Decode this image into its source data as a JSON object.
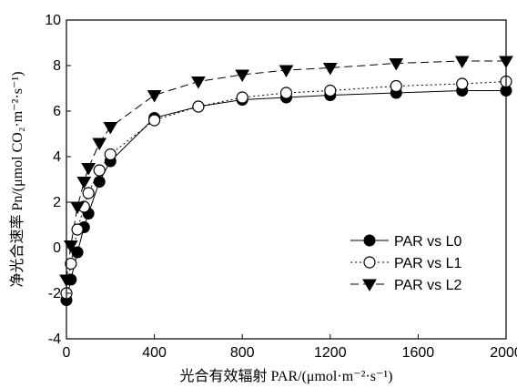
{
  "chart_data": {
    "type": "scatter",
    "xlabel": "光合有效辐射 PAR/(μmol·m⁻²·s⁻¹)",
    "ylabel": "净光合速率 Pn/(μmol CO₂·m⁻²·s⁻¹)",
    "xlim": [
      0,
      2000
    ],
    "ylim": [
      -4,
      10
    ],
    "xticks": [
      "0",
      "400",
      "800",
      "1200",
      "1600",
      "2000"
    ],
    "yticks": [
      "-4",
      "-2",
      "0",
      "2",
      "4",
      "6",
      "8",
      "10"
    ],
    "grid": false,
    "legend_position": "right-middle",
    "series": [
      {
        "name": "PAR vs L0",
        "marker": "filled-circle",
        "line": "solid",
        "x": [
          0,
          20,
          50,
          80,
          100,
          150,
          200,
          400,
          600,
          800,
          1000,
          1200,
          1500,
          1800,
          2000
        ],
        "y": [
          -2.3,
          -1.4,
          -0.2,
          0.9,
          1.5,
          2.9,
          3.8,
          5.7,
          6.2,
          6.5,
          6.6,
          6.7,
          6.8,
          6.9,
          6.9
        ]
      },
      {
        "name": "PAR vs L1",
        "marker": "open-circle",
        "line": "dotted",
        "x": [
          0,
          20,
          50,
          80,
          100,
          150,
          200,
          400,
          600,
          800,
          1000,
          1200,
          1500,
          1800,
          2000
        ],
        "y": [
          -2.0,
          -0.7,
          0.8,
          1.8,
          2.4,
          3.4,
          4.1,
          5.6,
          6.2,
          6.6,
          6.8,
          6.9,
          7.1,
          7.2,
          7.3
        ]
      },
      {
        "name": "PAR vs L2",
        "marker": "filled-triangle-down",
        "line": "dashed",
        "x": [
          0,
          20,
          50,
          80,
          100,
          150,
          200,
          400,
          600,
          800,
          1000,
          1200,
          1500,
          1800,
          2000
        ],
        "y": [
          -1.4,
          0.1,
          1.8,
          2.9,
          3.5,
          4.6,
          5.3,
          6.7,
          7.3,
          7.6,
          7.8,
          7.9,
          8.1,
          8.2,
          8.2
        ]
      }
    ]
  }
}
